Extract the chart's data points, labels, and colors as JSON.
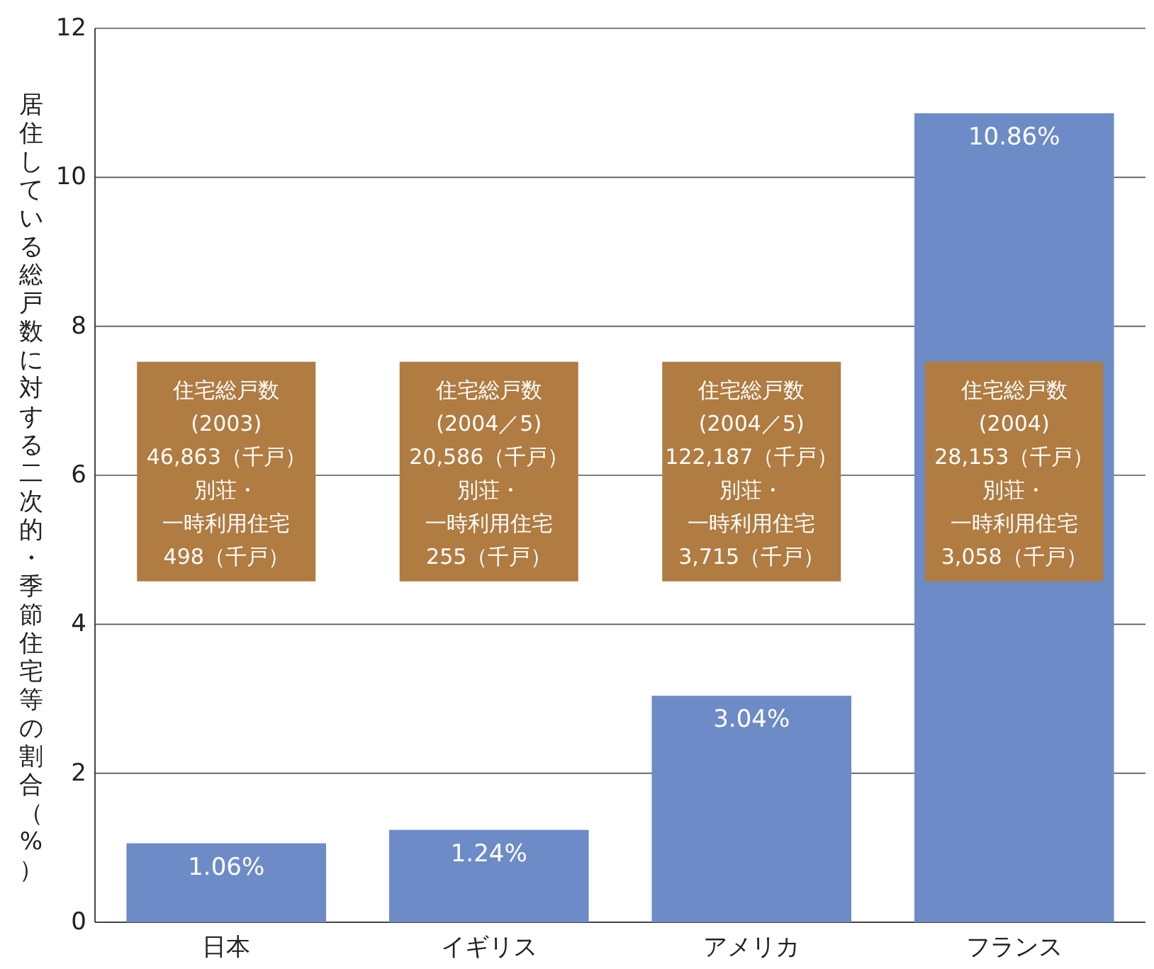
{
  "chart_data": {
    "type": "bar",
    "ylabel": "居住している総戸数に対する二次的・季節住宅等の割合（%）",
    "categories": [
      "日本",
      "イギリス",
      "アメリカ",
      "フランス"
    ],
    "values": [
      1.06,
      1.24,
      3.04,
      10.86
    ],
    "value_labels": [
      "1.06%",
      "1.24%",
      "3.04%",
      "10.86%"
    ],
    "color": "#6d8bc7",
    "ylim": [
      0,
      12
    ],
    "yticks": [
      0,
      2,
      4,
      6,
      8,
      10,
      12
    ],
    "grid": "y",
    "annotations": [
      "住宅総戸数",
      "(2003)",
      "46,863（千戸）",
      "別荘・",
      "一時利用住宅",
      "498（千戸）",
      "住宅総戸数",
      "(2004／5)",
      "20,586（千戸）",
      "別荘・",
      "一時利用住宅",
      "255（千戸）",
      "住宅総戸数",
      "(2004／5)",
      "122,187（千戸）",
      "別荘・",
      "一時利用住宅",
      "3,715（千戸）",
      "住宅総戸数",
      "(2004)",
      "28,153（千戸）",
      "別荘・",
      "一時利用住宅",
      "3,058（千戸）"
    ]
  }
}
